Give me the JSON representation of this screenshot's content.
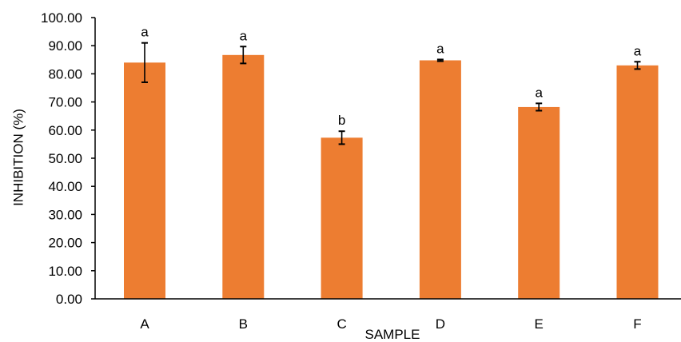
{
  "chart_data": {
    "type": "bar",
    "title": "",
    "xlabel": "SAMPLE",
    "ylabel": "INHIBITION (%)",
    "ylim": [
      0,
      100
    ],
    "yticks": [
      0,
      10,
      20,
      30,
      40,
      50,
      60,
      70,
      80,
      90,
      100
    ],
    "ytick_labels": [
      "0.00",
      "10.00",
      "20.00",
      "30.00",
      "40.00",
      "50.00",
      "60.00",
      "70.00",
      "80.00",
      "90.00",
      "100.00"
    ],
    "categories": [
      "A",
      "B",
      "C",
      "D",
      "E",
      "F"
    ],
    "values": [
      84.0,
      86.7,
      57.3,
      84.8,
      68.2,
      83.0
    ],
    "error": [
      7.0,
      3.0,
      2.3,
      0.3,
      1.3,
      1.3
    ],
    "significance": [
      "a",
      "a",
      "b",
      "a",
      "a",
      "a"
    ],
    "bar_color": "#ED7D31",
    "axis_color": "#000000",
    "grid": false,
    "legend": "none"
  }
}
